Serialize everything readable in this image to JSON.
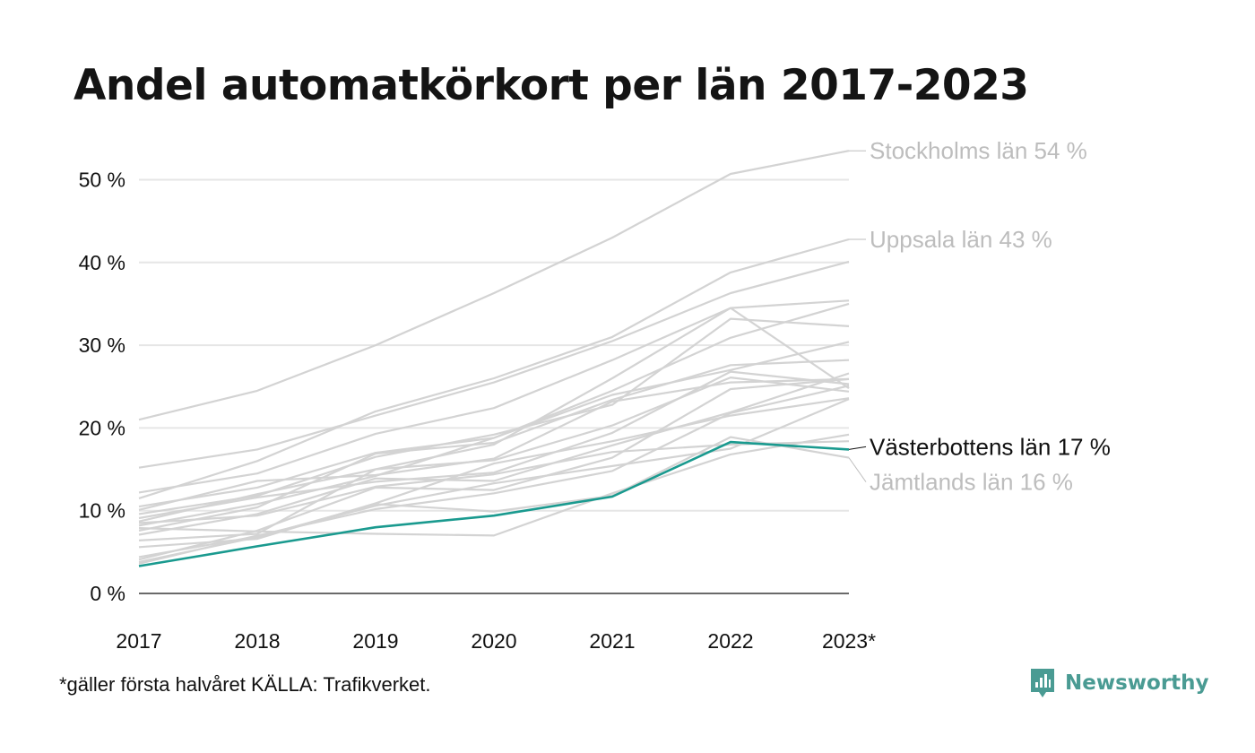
{
  "title": "Andel automatkörkort per län 2017-2023",
  "footnote": "*gäller första halvåret KÄLLA: Trafikverket.",
  "brand": {
    "name": "Newsworthy",
    "icon": "newsworthy-logo-icon",
    "color": "#4a9b93"
  },
  "colors": {
    "background_series": "#d3d3d3",
    "highlight": "#1a9a8f",
    "grid": "#e6e6e6",
    "axis": "#111111",
    "muted_label": "#bdbdbd"
  },
  "chart_data": {
    "type": "line",
    "title": "Andel automatkörkort per län 2017-2023",
    "xlabel": "",
    "ylabel": "",
    "x": [
      "2017",
      "2018",
      "2019",
      "2020",
      "2021",
      "2022",
      "2023*"
    ],
    "ylim": [
      0,
      55
    ],
    "yticks": [
      0,
      10,
      20,
      30,
      40,
      50
    ],
    "ytick_labels": [
      "0 %",
      "10 %",
      "20 %",
      "30 %",
      "40 %",
      "50 %"
    ],
    "grid": true,
    "series": [
      {
        "name": "Stockholms län",
        "values": [
          21,
          24.5,
          30,
          36.3,
          43,
          50.7,
          53.5
        ],
        "highlight": false,
        "label": "Stockholms län 54 %"
      },
      {
        "name": "Uppsala län",
        "values": [
          11.5,
          16,
          22,
          26,
          31,
          38.8,
          42.8
        ],
        "highlight": false,
        "label": "Uppsala län 43 %"
      },
      {
        "name": "Västerbottens län",
        "values": [
          3.3,
          5.7,
          8,
          9.4,
          11.7,
          18.3,
          17.4
        ],
        "highlight": true,
        "label": "Västerbottens län 17 %"
      },
      {
        "name": "Jämtlands län",
        "values": [
          3.8,
          6.8,
          10.8,
          9.9,
          11.8,
          18.9,
          16.4
        ],
        "highlight": false,
        "label": "Jämtlands län 16 %"
      },
      {
        "name": "",
        "values": [
          15.2,
          17.4,
          21.5,
          25.5,
          30.5,
          36.3,
          40.1
        ],
        "highlight": false
      },
      {
        "name": "",
        "values": [
          12.2,
          14.5,
          19.3,
          22.4,
          28.2,
          34.5,
          35.4
        ],
        "highlight": false
      },
      {
        "name": "",
        "values": [
          10.5,
          12.8,
          17,
          18.8,
          24.5,
          30.9,
          35
        ],
        "highlight": false
      },
      {
        "name": "",
        "values": [
          9.6,
          11.8,
          16.5,
          19.2,
          22.8,
          33.2,
          32.3
        ],
        "highlight": false
      },
      {
        "name": "",
        "values": [
          8.7,
          12,
          15,
          18,
          26,
          34.5,
          24.8
        ],
        "highlight": false
      },
      {
        "name": "",
        "values": [
          8.2,
          10.8,
          14.2,
          18.8,
          24,
          27,
          30.4
        ],
        "highlight": false
      },
      {
        "name": "",
        "values": [
          7.6,
          10.4,
          16.9,
          18.2,
          23.4,
          27.6,
          28.2
        ],
        "highlight": false
      },
      {
        "name": "",
        "values": [
          10.1,
          13.6,
          14.3,
          16.3,
          23.2,
          25.5,
          25.9
        ],
        "highlight": false
      },
      {
        "name": "",
        "values": [
          9.1,
          11.6,
          13.5,
          14.6,
          19.4,
          26.8,
          25.3
        ],
        "highlight": false
      },
      {
        "name": "",
        "values": [
          7.1,
          9.6,
          13.9,
          13.6,
          17.9,
          21.9,
          26.6
        ],
        "highlight": false
      },
      {
        "name": "",
        "values": [
          6.4,
          7.2,
          15,
          16.1,
          20.3,
          26.1,
          24.4
        ],
        "highlight": false
      },
      {
        "name": "",
        "values": [
          5.6,
          6.6,
          10.9,
          15.7,
          18.4,
          21.5,
          23.6
        ],
        "highlight": false
      },
      {
        "name": "",
        "values": [
          4.1,
          7.6,
          12.8,
          12.5,
          16.4,
          24.7,
          25.9
        ],
        "highlight": false
      },
      {
        "name": "",
        "values": [
          3.6,
          7,
          10.2,
          12.1,
          14.8,
          21.8,
          25.1
        ],
        "highlight": false
      },
      {
        "name": "",
        "values": [
          8.5,
          9.4,
          12.9,
          14.4,
          17.1,
          18,
          18.4
        ],
        "highlight": false
      },
      {
        "name": "",
        "values": [
          7.9,
          7.5,
          7.2,
          7,
          12.1,
          16.8,
          19.2
        ],
        "highlight": false
      },
      {
        "name": "",
        "values": [
          4.4,
          6.9,
          10.6,
          13.3,
          15.4,
          17.5,
          23.5
        ],
        "highlight": false
      }
    ]
  }
}
